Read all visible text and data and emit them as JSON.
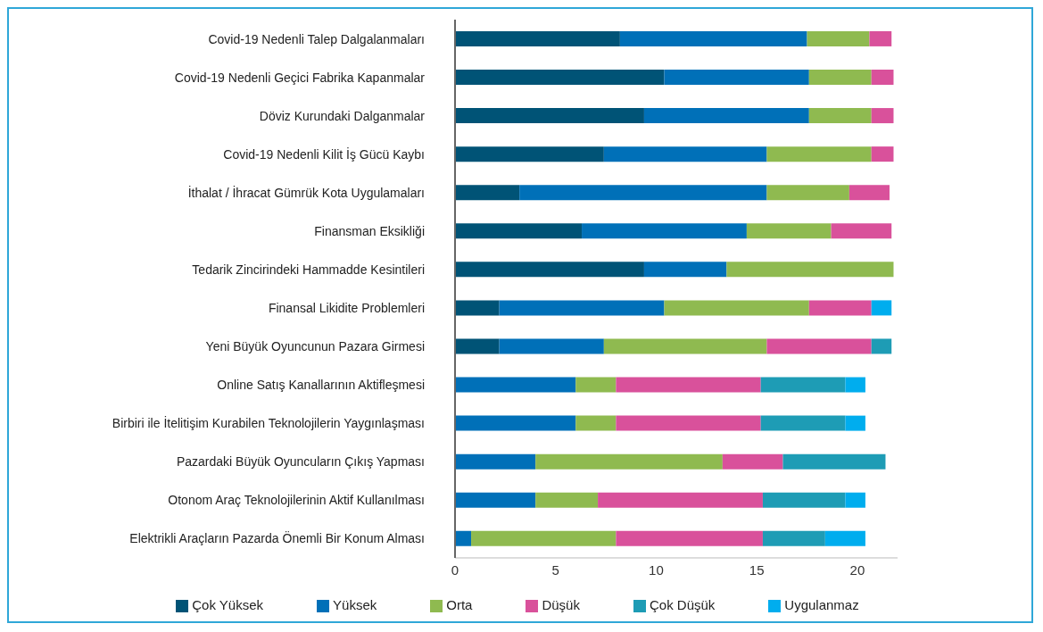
{
  "chart_data": {
    "type": "bar",
    "orientation": "horizontal",
    "stacked": true,
    "categories": [
      "Covid-19 Nedenli Talep Dalgalanmaları",
      "Covid-19 Nedenli Geçici Fabrika Kapanmalar",
      "Döviz Kurundaki Dalganmalar",
      "Covid-19 Nedenli Kilit İş Gücü Kaybı",
      "İthalat / İhracat Gümrük Kota Uygulamaları",
      "Finansman Eksikliği",
      "Tedarik Zincirindeki Hammadde Kesintileri",
      "Finansal Likidite Problemleri",
      "Yeni Büyük Oyuncunun Pazara Girmesi",
      "Online Satış Kanallarının Aktifleşmesi",
      "Birbiri ile İtelitişim Kurabilen Teknolojilerin Yaygınlaşması",
      "Pazardaki Büyük Oyuncuların Çıkış Yapması",
      "Otonom Araç Teknolojilerinin Aktif Kullanılması",
      "Elektrikli Araçların Pazarda Önemli Bir Konum Alması"
    ],
    "series": [
      {
        "name": "Çok Yüksek",
        "color": "#005376",
        "values": [
          8.2,
          10.4,
          9.4,
          7.4,
          3.2,
          6.3,
          9.4,
          2.2,
          2.2,
          null,
          null,
          null,
          null,
          null
        ]
      },
      {
        "name": "Yüksek",
        "color": "#0070b8",
        "values": [
          9.3,
          7.2,
          8.2,
          8.1,
          12.3,
          8.2,
          4.1,
          8.2,
          5.2,
          6.0,
          6.0,
          4.0,
          4.0,
          0.8
        ]
      },
      {
        "name": "Orta",
        "color": "#8fba50",
        "values": [
          3.1,
          3.1,
          3.1,
          5.2,
          4.1,
          4.2,
          8.3,
          7.2,
          8.1,
          2.0,
          2.0,
          9.3,
          3.1,
          7.2
        ]
      },
      {
        "name": "Düşük",
        "color": "#d9519b",
        "values": [
          1.1,
          1.1,
          1.1,
          1.1,
          2.0,
          3.0,
          null,
          3.1,
          5.2,
          7.2,
          7.2,
          3.0,
          8.2,
          7.3
        ]
      },
      {
        "name": "Çok Düşük",
        "color": "#1e9cb5",
        "values": [
          null,
          null,
          null,
          null,
          null,
          null,
          null,
          null,
          1.0,
          4.2,
          4.2,
          5.1,
          4.1,
          3.1
        ]
      },
      {
        "name": "Uygulanmaz",
        "color": "#00adee",
        "values": [
          null,
          null,
          null,
          null,
          null,
          null,
          null,
          1.0,
          null,
          1.0,
          1.0,
          null,
          1.0,
          2.0
        ]
      }
    ],
    "xlim": [
      0,
      22
    ],
    "xticks": [
      0,
      5,
      10,
      15,
      20
    ],
    "grid": false,
    "legend": "bottom"
  }
}
